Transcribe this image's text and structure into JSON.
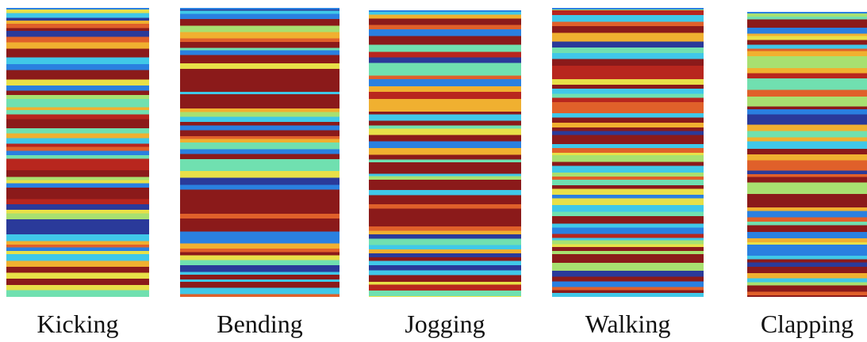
{
  "panels": [
    {
      "label": "Kicking"
    },
    {
      "label": "Bending"
    },
    {
      "label": "Jogging"
    },
    {
      "label": "Walking"
    },
    {
      "label": "Clapping"
    }
  ]
}
